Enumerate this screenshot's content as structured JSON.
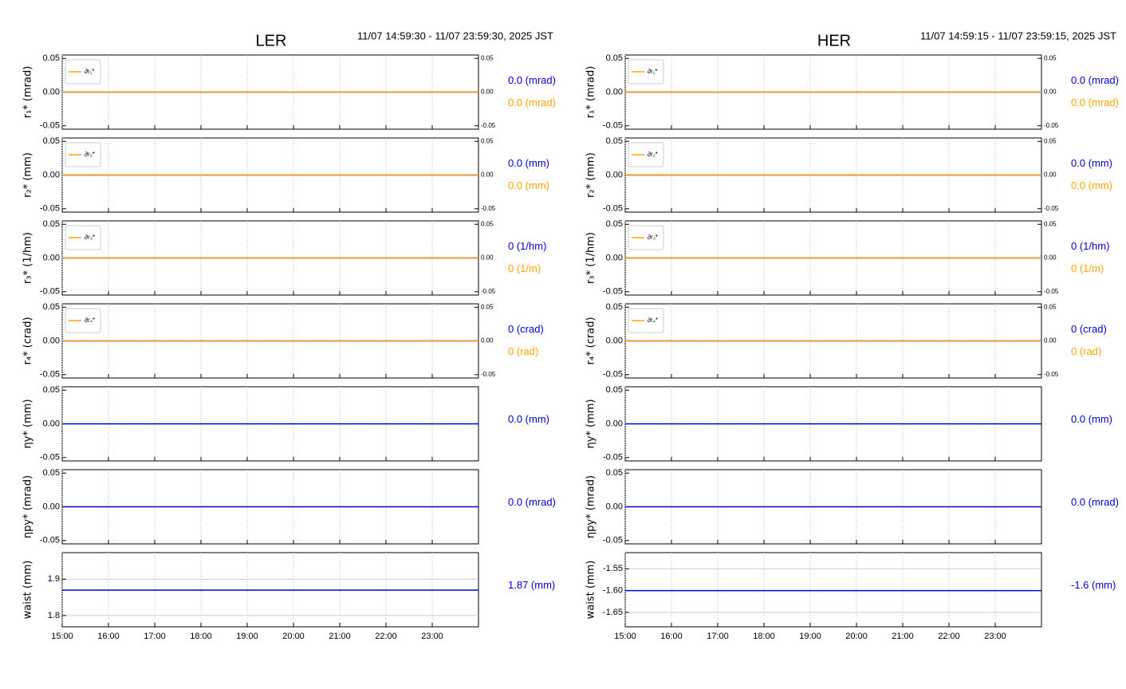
{
  "chart_data": [
    {
      "type": "line",
      "title": "LER",
      "subtitle": "11/07 14:59:30 - 11/07 23:59:30, 2025 JST",
      "xlim": [
        15,
        24
      ],
      "xticks": [
        {
          "value": 15,
          "label": "15:00"
        },
        {
          "value": 16,
          "label": "16:00"
        },
        {
          "value": 17,
          "label": "17:00"
        },
        {
          "value": 18,
          "label": "18:00"
        },
        {
          "value": 19,
          "label": "19:00"
        },
        {
          "value": 20,
          "label": "20:00"
        },
        {
          "value": 21,
          "label": "21:00"
        },
        {
          "value": 22,
          "label": "22:00"
        },
        {
          "value": 23,
          "label": "23:00"
        }
      ],
      "panels": [
        {
          "ylabel": "r₁* (mrad)",
          "ylim": [
            -0.055,
            0.055
          ],
          "yticks": [
            0.05,
            {
              "value": 0,
              "label": "0.00"
            },
            -0.05
          ],
          "y2lim": [
            -0.055,
            0.055
          ],
          "y2ticks": [
            0.05,
            {
              "value": 0,
              "label": "0.00"
            },
            -0.05
          ],
          "series": [
            {
              "color": "#0000cd",
              "x": [
                15,
                24
              ],
              "values": [
                0,
                0
              ],
              "readout": "0.0 (mrad)"
            },
            {
              "name": "∂r₁*",
              "color": "#ffa500",
              "axis": "y2",
              "x": [
                15,
                24
              ],
              "values": [
                0,
                0
              ],
              "readout": "0.0 (mrad)"
            }
          ]
        },
        {
          "ylabel": "r₂* (mm)",
          "ylim": [
            -0.055,
            0.055
          ],
          "yticks": [
            0.05,
            {
              "value": 0,
              "label": "0.00"
            },
            -0.05
          ],
          "y2lim": [
            -0.055,
            0.055
          ],
          "y2ticks": [
            0.05,
            {
              "value": 0,
              "label": "0.00"
            },
            -0.05
          ],
          "series": [
            {
              "color": "#0000cd",
              "x": [
                15,
                24
              ],
              "values": [
                0,
                0
              ],
              "readout": "0.0 (mm)"
            },
            {
              "name": "∂r₂*",
              "color": "#ffa500",
              "axis": "y2",
              "x": [
                15,
                24
              ],
              "values": [
                0,
                0
              ],
              "readout": "0.0 (mm)"
            }
          ]
        },
        {
          "ylabel": "r₃* (1/hm)",
          "ylim": [
            -0.055,
            0.055
          ],
          "yticks": [
            0.05,
            {
              "value": 0,
              "label": "0.00"
            },
            -0.05
          ],
          "y2lim": [
            -0.055,
            0.055
          ],
          "y2ticks": [
            0.05,
            {
              "value": 0,
              "label": "0.00"
            },
            -0.05
          ],
          "series": [
            {
              "color": "#0000cd",
              "x": [
                15,
                24
              ],
              "values": [
                0,
                0
              ],
              "readout": "0 (1/hm)"
            },
            {
              "name": "∂r₃*",
              "color": "#ffa500",
              "axis": "y2",
              "x": [
                15,
                24
              ],
              "values": [
                0,
                0
              ],
              "readout": "0 (1/m)"
            }
          ]
        },
        {
          "ylabel": "r₄* (crad)",
          "ylim": [
            -0.055,
            0.055
          ],
          "yticks": [
            0.05,
            {
              "value": 0,
              "label": "0.00"
            },
            -0.05
          ],
          "y2lim": [
            -0.055,
            0.055
          ],
          "y2ticks": [
            0.05,
            {
              "value": 0,
              "label": "0.00"
            },
            -0.05
          ],
          "series": [
            {
              "color": "#0000cd",
              "x": [
                15,
                24
              ],
              "values": [
                0,
                0
              ],
              "readout": "0 (crad)"
            },
            {
              "name": "∂r₄*",
              "color": "#ffa500",
              "axis": "y2",
              "x": [
                15,
                24
              ],
              "values": [
                0,
                0
              ],
              "readout": "0 (rad)"
            }
          ]
        },
        {
          "ylabel": "ηy* (mm)",
          "ylim": [
            -0.055,
            0.055
          ],
          "yticks": [
            0.05,
            {
              "value": 0,
              "label": "0.00"
            },
            -0.05
          ],
          "series": [
            {
              "color": "#0000cd",
              "x": [
                15,
                24
              ],
              "values": [
                0,
                0
              ],
              "readout": "0.0 (mm)"
            }
          ]
        },
        {
          "ylabel": "ηpy* (mrad)",
          "ylim": [
            -0.055,
            0.055
          ],
          "yticks": [
            0.05,
            {
              "value": 0,
              "label": "0.00"
            },
            -0.05
          ],
          "series": [
            {
              "color": "#0000cd",
              "x": [
                15,
                24
              ],
              "values": [
                0,
                0
              ],
              "readout": "0.0 (mrad)"
            }
          ]
        },
        {
          "ylabel": "waist (mm)",
          "ylim": [
            1.769,
            1.973
          ],
          "yticks": [
            1.9,
            1.8
          ],
          "grid": true,
          "series": [
            {
              "color": "#0000cd",
              "x": [
                15,
                24
              ],
              "values": [
                1.87,
                1.87
              ],
              "readout": "1.87 (mm)"
            }
          ]
        }
      ]
    },
    {
      "type": "line",
      "title": "HER",
      "subtitle": "11/07 14:59:15 - 11/07 23:59:15, 2025 JST",
      "xlim": [
        15,
        24
      ],
      "xticks": [
        {
          "value": 15,
          "label": "15:00"
        },
        {
          "value": 16,
          "label": "16:00"
        },
        {
          "value": 17,
          "label": "17:00"
        },
        {
          "value": 18,
          "label": "18:00"
        },
        {
          "value": 19,
          "label": "19:00"
        },
        {
          "value": 20,
          "label": "20:00"
        },
        {
          "value": 21,
          "label": "21:00"
        },
        {
          "value": 22,
          "label": "22:00"
        },
        {
          "value": 23,
          "label": "23:00"
        }
      ],
      "panels": [
        {
          "ylabel": "r₁* (mrad)",
          "ylim": [
            -0.055,
            0.055
          ],
          "yticks": [
            0.05,
            {
              "value": 0,
              "label": "0.00"
            },
            -0.05
          ],
          "y2lim": [
            -0.055,
            0.055
          ],
          "y2ticks": [
            0.05,
            {
              "value": 0,
              "label": "0.00"
            },
            -0.05
          ],
          "series": [
            {
              "color": "#0000cd",
              "x": [
                15,
                24
              ],
              "values": [
                0,
                0
              ],
              "readout": "0.0 (mrad)"
            },
            {
              "name": "∂r₁*",
              "color": "#ffa500",
              "axis": "y2",
              "x": [
                15,
                24
              ],
              "values": [
                0,
                0
              ],
              "readout": "0.0 (mrad)"
            }
          ]
        },
        {
          "ylabel": "r₂* (mm)",
          "ylim": [
            -0.055,
            0.055
          ],
          "yticks": [
            0.05,
            {
              "value": 0,
              "label": "0.00"
            },
            -0.05
          ],
          "y2lim": [
            -0.055,
            0.055
          ],
          "y2ticks": [
            0.05,
            {
              "value": 0,
              "label": "0.00"
            },
            -0.05
          ],
          "series": [
            {
              "color": "#0000cd",
              "x": [
                15,
                24
              ],
              "values": [
                0,
                0
              ],
              "readout": "0.0 (mm)"
            },
            {
              "name": "∂r₂*",
              "color": "#ffa500",
              "axis": "y2",
              "x": [
                15,
                24
              ],
              "values": [
                0,
                0
              ],
              "readout": "0.0 (mm)"
            }
          ]
        },
        {
          "ylabel": "r₃* (1/hm)",
          "ylim": [
            -0.055,
            0.055
          ],
          "yticks": [
            0.05,
            {
              "value": 0,
              "label": "0.00"
            },
            -0.05
          ],
          "y2lim": [
            -0.055,
            0.055
          ],
          "y2ticks": [
            0.05,
            {
              "value": 0,
              "label": "0.00"
            },
            -0.05
          ],
          "series": [
            {
              "color": "#0000cd",
              "x": [
                15,
                24
              ],
              "values": [
                0,
                0
              ],
              "readout": "0 (1/hm)"
            },
            {
              "name": "∂r₃*",
              "color": "#ffa500",
              "axis": "y2",
              "x": [
                15,
                24
              ],
              "values": [
                0,
                0
              ],
              "readout": "0 (1/m)"
            }
          ]
        },
        {
          "ylabel": "r₄* (crad)",
          "ylim": [
            -0.055,
            0.055
          ],
          "yticks": [
            0.05,
            {
              "value": 0,
              "label": "0.00"
            },
            -0.05
          ],
          "y2lim": [
            -0.055,
            0.055
          ],
          "y2ticks": [
            0.05,
            {
              "value": 0,
              "label": "0.00"
            },
            -0.05
          ],
          "series": [
            {
              "color": "#0000cd",
              "x": [
                15,
                24
              ],
              "values": [
                0,
                0
              ],
              "readout": "0 (crad)"
            },
            {
              "name": "∂r₄*",
              "color": "#ffa500",
              "axis": "y2",
              "x": [
                15,
                24
              ],
              "values": [
                0,
                0
              ],
              "readout": "0 (rad)"
            }
          ]
        },
        {
          "ylabel": "ηy* (mm)",
          "ylim": [
            -0.055,
            0.055
          ],
          "yticks": [
            0.05,
            {
              "value": 0,
              "label": "0.00"
            },
            -0.05
          ],
          "series": [
            {
              "color": "#0000cd",
              "x": [
                15,
                24
              ],
              "values": [
                0,
                0
              ],
              "readout": "0.0 (mm)"
            }
          ]
        },
        {
          "ylabel": "ηpy* (mrad)",
          "ylim": [
            -0.055,
            0.055
          ],
          "yticks": [
            0.05,
            {
              "value": 0,
              "label": "0.00"
            },
            -0.05
          ],
          "series": [
            {
              "color": "#0000cd",
              "x": [
                15,
                24
              ],
              "values": [
                0,
                0
              ],
              "readout": "0.0 (mrad)"
            }
          ]
        },
        {
          "ylabel": "waist (mm)",
          "ylim": [
            -1.683,
            -1.513
          ],
          "yticks": [
            -1.55,
            {
              "value": -1.6,
              "label": "-1.60"
            },
            -1.65
          ],
          "grid": true,
          "series": [
            {
              "color": "#0000cd",
              "x": [
                15,
                24
              ],
              "values": [
                -1.6,
                -1.6
              ],
              "readout": "-1.6 (mm)"
            }
          ]
        }
      ]
    }
  ]
}
